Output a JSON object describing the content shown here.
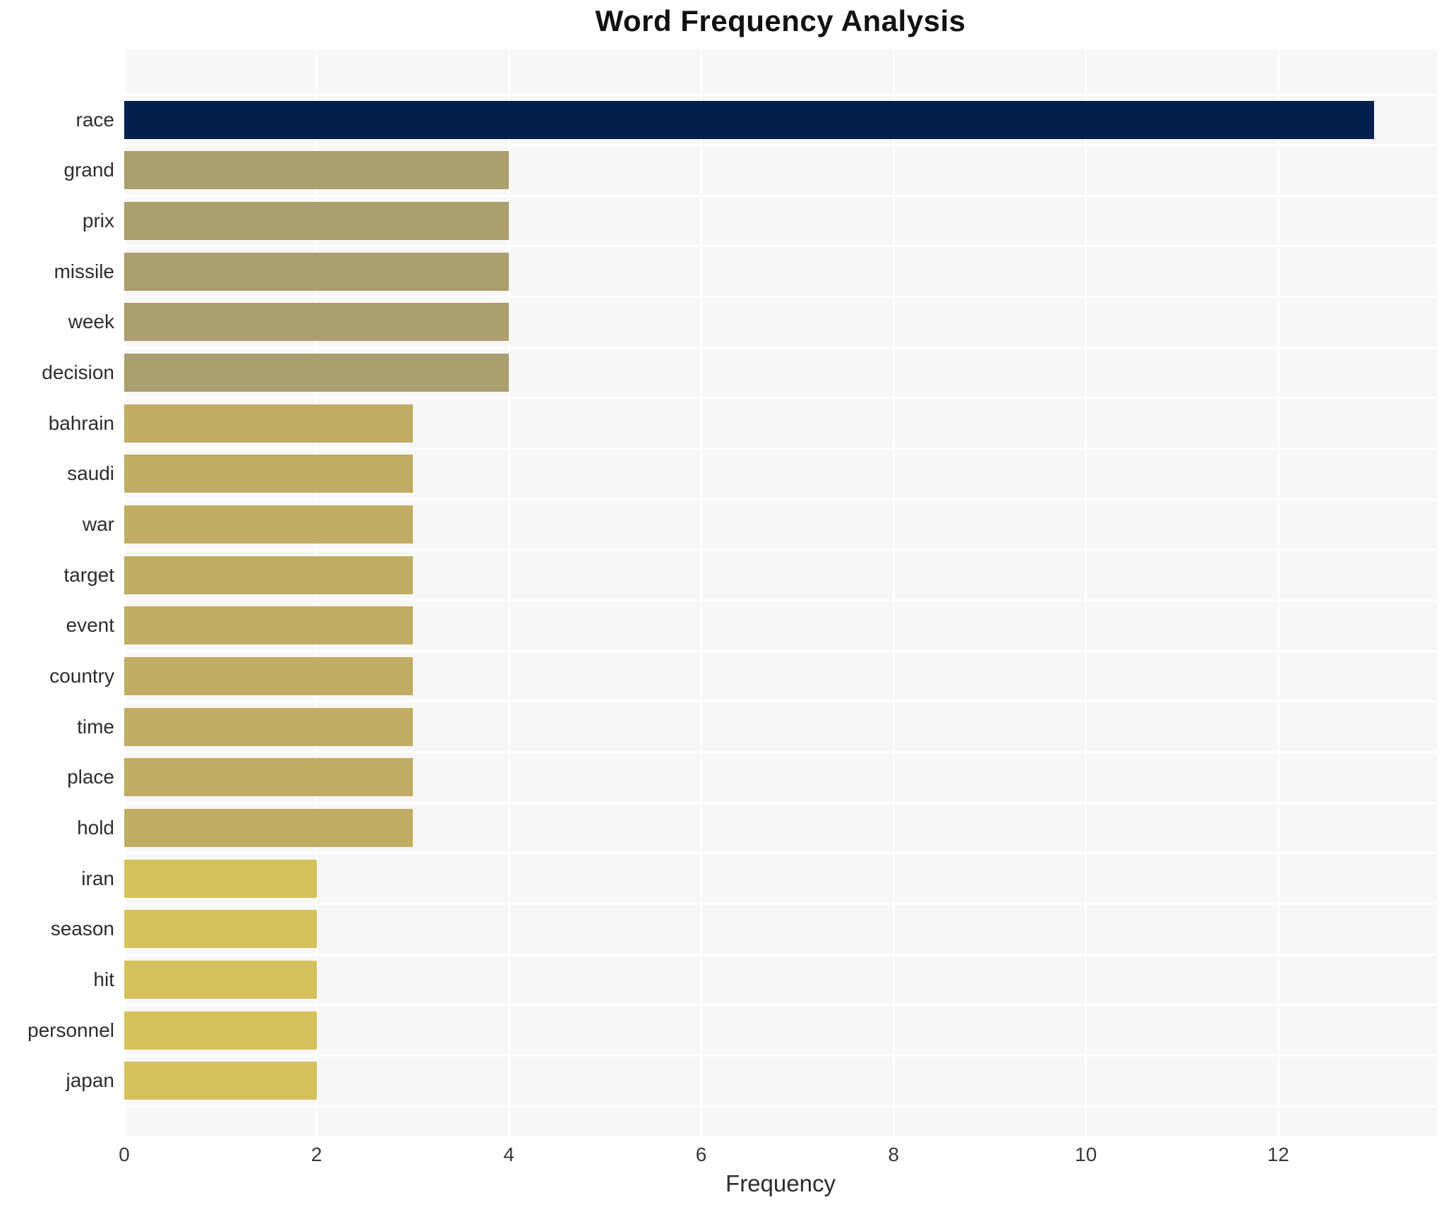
{
  "title": "Word Frequency Analysis",
  "chart_data": {
    "type": "bar",
    "orientation": "horizontal",
    "title": "Word Frequency Analysis",
    "xlabel": "Frequency",
    "ylabel": "",
    "categories": [
      "race",
      "grand",
      "prix",
      "missile",
      "week",
      "decision",
      "bahrain",
      "saudi",
      "war",
      "target",
      "event",
      "country",
      "time",
      "place",
      "hold",
      "iran",
      "season",
      "hit",
      "personnel",
      "japan"
    ],
    "values": [
      13,
      4,
      4,
      4,
      4,
      4,
      3,
      3,
      3,
      3,
      3,
      3,
      3,
      3,
      3,
      2,
      2,
      2,
      2,
      2
    ],
    "bar_colors": [
      "#03214d",
      "#aa9f6e",
      "#aa9f6e",
      "#aa9f6e",
      "#aa9f6e",
      "#aa9f6e",
      "#c1ac64",
      "#c1ac64",
      "#c1ac64",
      "#c1ac64",
      "#c1ac64",
      "#c1ac64",
      "#c1ac64",
      "#c1ac64",
      "#c1ac64",
      "#d5c15c",
      "#d5c15c",
      "#d5c15c",
      "#d5c15c",
      "#d5c15c"
    ],
    "xlim": [
      0,
      13.65
    ],
    "xticks": [
      0,
      2,
      4,
      6,
      8,
      10,
      12
    ],
    "grid": "white gridlines on light gray plot background, vertical at ticks and horizontal between category rows",
    "legend": "none"
  },
  "colors": {
    "accent_navy": "#03214d",
    "olive": "#aa9f6e",
    "khaki": "#c1ac64",
    "yellow": "#d5c15c",
    "plot_background": "#f7f7f6",
    "gridline": "#ffffff",
    "text": "#2d2d2d"
  }
}
